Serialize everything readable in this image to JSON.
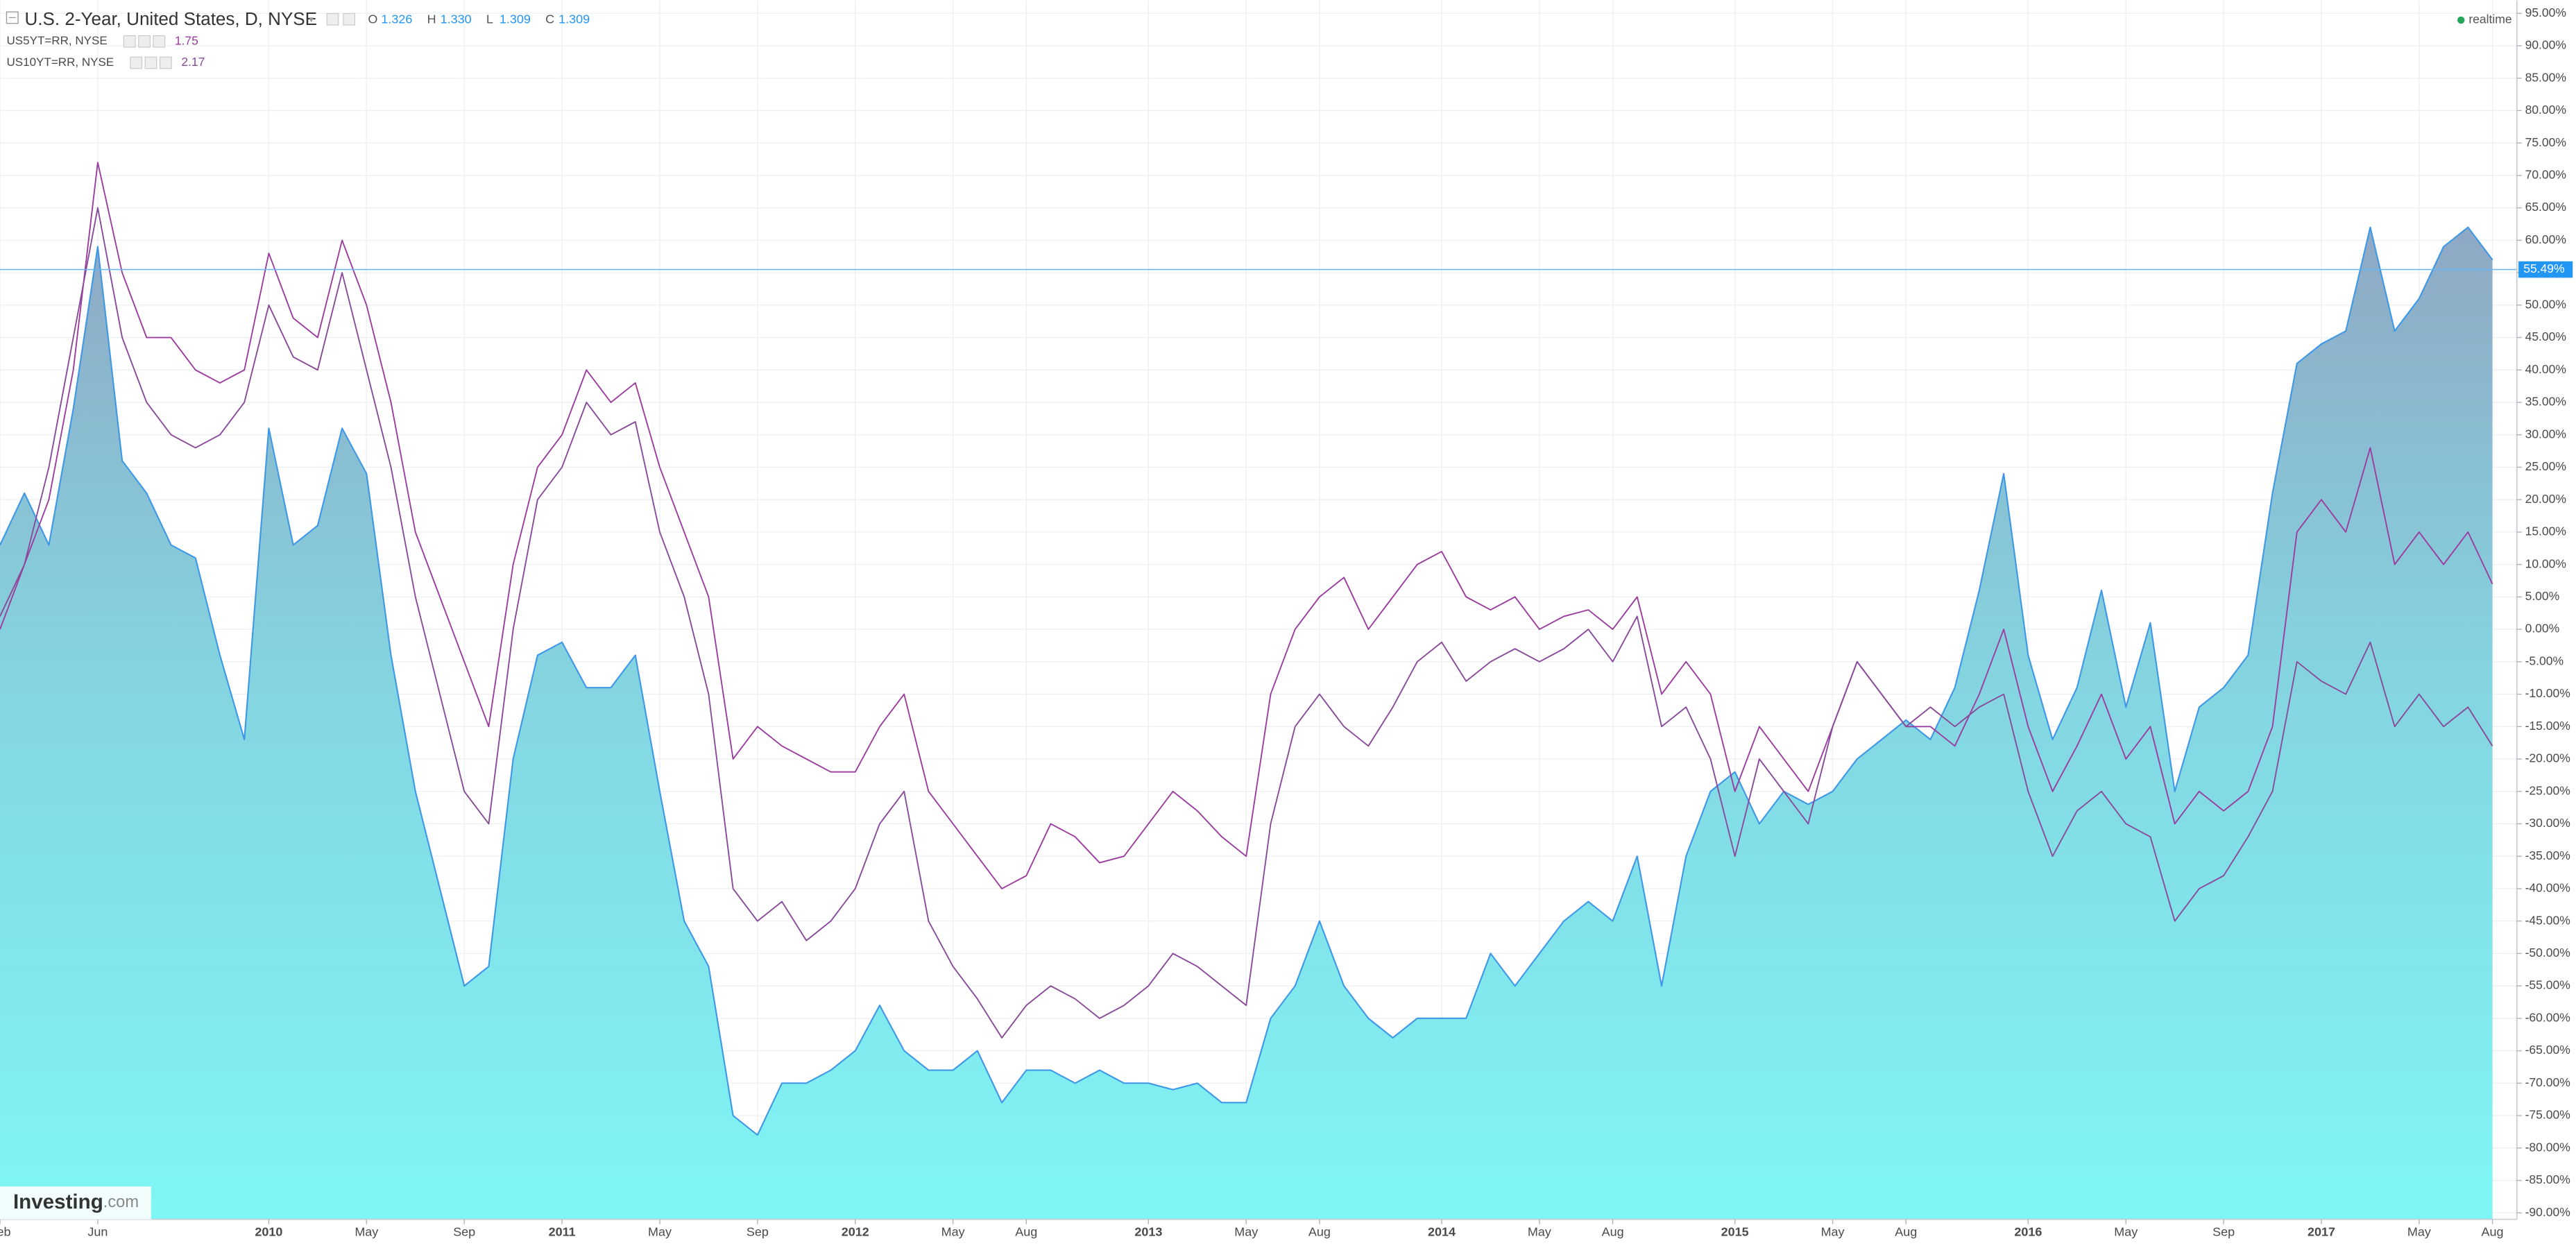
{
  "header": {
    "title": "U.S. 2-Year, United States, D, NYSE",
    "ohlc": [
      {
        "label": "O",
        "value": "1.326"
      },
      {
        "label": "H",
        "value": "1.330"
      },
      {
        "label": "L",
        "value": "1.309"
      },
      {
        "label": "C",
        "value": "1.309"
      }
    ],
    "compare": [
      {
        "name": "US5YT=RR, NYSE",
        "last": "1.75"
      },
      {
        "name": "US10YT=RR, NYSE",
        "last": "2.17"
      }
    ],
    "status": "realtime"
  },
  "watermark": {
    "brand": "Investing",
    "suffix": ".com"
  },
  "chart_data": {
    "type": "line",
    "x": [
      "2009-02",
      "2009-03",
      "2009-04",
      "2009-05",
      "2009-06",
      "2009-07",
      "2009-08",
      "2009-09",
      "2009-10",
      "2009-11",
      "2009-12",
      "2010-01",
      "2010-02",
      "2010-03",
      "2010-04",
      "2010-05",
      "2010-06",
      "2010-07",
      "2010-08",
      "2010-09",
      "2010-10",
      "2010-11",
      "2010-12",
      "2011-01",
      "2011-02",
      "2011-03",
      "2011-04",
      "2011-05",
      "2011-06",
      "2011-07",
      "2011-08",
      "2011-09",
      "2011-10",
      "2011-11",
      "2011-12",
      "2012-01",
      "2012-02",
      "2012-03",
      "2012-04",
      "2012-05",
      "2012-06",
      "2012-07",
      "2012-08",
      "2012-09",
      "2012-10",
      "2012-11",
      "2012-12",
      "2013-01",
      "2013-02",
      "2013-03",
      "2013-04",
      "2013-05",
      "2013-06",
      "2013-07",
      "2013-08",
      "2013-09",
      "2013-10",
      "2013-11",
      "2013-12",
      "2014-01",
      "2014-02",
      "2014-03",
      "2014-04",
      "2014-05",
      "2014-06",
      "2014-07",
      "2014-08",
      "2014-09",
      "2014-10",
      "2014-11",
      "2014-12",
      "2015-01",
      "2015-02",
      "2015-03",
      "2015-04",
      "2015-05",
      "2015-06",
      "2015-07",
      "2015-08",
      "2015-09",
      "2015-10",
      "2015-11",
      "2015-12",
      "2016-01",
      "2016-02",
      "2016-03",
      "2016-04",
      "2016-05",
      "2016-06",
      "2016-07",
      "2016-08",
      "2016-09",
      "2016-10",
      "2016-11",
      "2016-12",
      "2017-01",
      "2017-02",
      "2017-03",
      "2017-04",
      "2017-05",
      "2017-06",
      "2017-07",
      "2017-08"
    ],
    "series": [
      {
        "name": "U.S. 2-Year, United States, D, NYSE",
        "color": "#3f98e6",
        "fill": true,
        "values": [
          13,
          21,
          13,
          34,
          59,
          26,
          21,
          13,
          11,
          -4,
          -17,
          31,
          13,
          16,
          31,
          24,
          -4,
          -25,
          -40,
          -55,
          -52,
          -20,
          -4,
          -2,
          -9,
          -9,
          -4,
          -25,
          -45,
          -52,
          -75,
          -78,
          -70,
          -70,
          -68,
          -65,
          -58,
          -65,
          -68,
          -68,
          -65,
          -73,
          -68,
          -68,
          -70,
          -68,
          -70,
          -70,
          -71,
          -70,
          -73,
          -73,
          -60,
          -55,
          -45,
          -55,
          -60,
          -63,
          -60,
          -60,
          -60,
          -50,
          -55,
          -50,
          -45,
          -42,
          -45,
          -35,
          -55,
          -35,
          -25,
          -22,
          -30,
          -25,
          -27,
          -25,
          -20,
          -17,
          -14,
          -17,
          -9,
          6,
          24,
          -4,
          -17,
          -9,
          6,
          -12,
          1,
          -25,
          -12,
          -9,
          -4,
          21,
          41,
          44,
          46,
          62,
          46,
          51,
          59,
          62,
          57
        ]
      },
      {
        "name": "US5YT=RR, NYSE",
        "color": "#9b3d9e",
        "values": [
          0,
          10,
          20,
          40,
          72,
          55,
          45,
          45,
          40,
          38,
          40,
          58,
          48,
          45,
          60,
          50,
          35,
          15,
          5,
          -5,
          -15,
          10,
          25,
          30,
          40,
          35,
          38,
          25,
          15,
          5,
          -20,
          -15,
          -18,
          -20,
          -22,
          -22,
          -15,
          -10,
          -25,
          -30,
          -35,
          -40,
          -38,
          -30,
          -32,
          -36,
          -35,
          -30,
          -25,
          -28,
          -32,
          -35,
          -10,
          0,
          5,
          8,
          0,
          5,
          10,
          12,
          5,
          3,
          5,
          0,
          2,
          3,
          0,
          5,
          -10,
          -5,
          -10,
          -25,
          -15,
          -20,
          -25,
          -15,
          -5,
          -10,
          -15,
          -15,
          -18,
          -10,
          0,
          -15,
          -25,
          -18,
          -10,
          -20,
          -15,
          -30,
          -25,
          -28,
          -25,
          -15,
          15,
          20,
          15,
          28,
          10,
          15,
          10,
          15,
          7
        ]
      },
      {
        "name": "US10YT=RR, NYSE",
        "color": "#8a4a9a",
        "values": [
          2,
          10,
          25,
          45,
          65,
          45,
          35,
          30,
          28,
          30,
          35,
          50,
          42,
          40,
          55,
          40,
          25,
          5,
          -10,
          -25,
          -30,
          0,
          20,
          25,
          35,
          30,
          32,
          15,
          5,
          -10,
          -40,
          -45,
          -42,
          -48,
          -45,
          -40,
          -30,
          -25,
          -45,
          -52,
          -57,
          -63,
          -58,
          -55,
          -57,
          -60,
          -58,
          -55,
          -50,
          -52,
          -55,
          -58,
          -30,
          -15,
          -10,
          -15,
          -18,
          -12,
          -5,
          -2,
          -8,
          -5,
          -3,
          -5,
          -3,
          0,
          -5,
          2,
          -15,
          -12,
          -20,
          -35,
          -20,
          -25,
          -30,
          -15,
          -5,
          -10,
          -15,
          -12,
          -15,
          -12,
          -10,
          -25,
          -35,
          -28,
          -25,
          -30,
          -32,
          -45,
          -40,
          -38,
          -32,
          -25,
          -5,
          -8,
          -10,
          -2,
          -15,
          -10,
          -15,
          -12,
          -18
        ]
      }
    ],
    "last_value": {
      "value": 55.49,
      "label": "55.49%"
    },
    "xlim": [
      "2009-02",
      "2017-09"
    ],
    "xticks": [
      {
        "value": "2009-02",
        "label": "Feb"
      },
      {
        "value": "2009-06",
        "label": "Jun"
      },
      {
        "value": "2010-01",
        "label": "2010"
      },
      {
        "value": "2010-05",
        "label": "May"
      },
      {
        "value": "2010-09",
        "label": "Sep"
      },
      {
        "value": "2011-01",
        "label": "2011"
      },
      {
        "value": "2011-05",
        "label": "May"
      },
      {
        "value": "2011-09",
        "label": "Sep"
      },
      {
        "value": "2012-01",
        "label": "2012"
      },
      {
        "value": "2012-05",
        "label": "May"
      },
      {
        "value": "2012-08",
        "label": "Aug"
      },
      {
        "value": "2013-01",
        "label": "2013"
      },
      {
        "value": "2013-05",
        "label": "May"
      },
      {
        "value": "2013-08",
        "label": "Aug"
      },
      {
        "value": "2014-01",
        "label": "2014"
      },
      {
        "value": "2014-05",
        "label": "May"
      },
      {
        "value": "2014-08",
        "label": "Aug"
      },
      {
        "value": "2015-01",
        "label": "2015"
      },
      {
        "value": "2015-05",
        "label": "May"
      },
      {
        "value": "2015-08",
        "label": "Aug"
      },
      {
        "value": "2016-01",
        "label": "2016"
      },
      {
        "value": "2016-05",
        "label": "May"
      },
      {
        "value": "2016-09",
        "label": "Sep"
      },
      {
        "value": "2017-01",
        "label": "2017"
      },
      {
        "value": "2017-05",
        "label": "May"
      },
      {
        "value": "2017-08",
        "label": "Aug"
      }
    ],
    "ylim": [
      -91,
      97
    ],
    "yticks": [
      {
        "value": 95,
        "label": "95.00%"
      },
      {
        "value": 90,
        "label": "90.00%"
      },
      {
        "value": 85,
        "label": "85.00%"
      },
      {
        "value": 80,
        "label": "80.00%"
      },
      {
        "value": 75,
        "label": "75.00%"
      },
      {
        "value": 70,
        "label": "70.00%"
      },
      {
        "value": 65,
        "label": "65.00%"
      },
      {
        "value": 60,
        "label": "60.00%"
      },
      {
        "value": 55,
        "label": "55.00%"
      },
      {
        "value": 50,
        "label": "50.00%"
      },
      {
        "value": 45,
        "label": "45.00%"
      },
      {
        "value": 40,
        "label": "40.00%"
      },
      {
        "value": 35,
        "label": "35.00%"
      },
      {
        "value": 30,
        "label": "30.00%"
      },
      {
        "value": 25,
        "label": "25.00%"
      },
      {
        "value": 20,
        "label": "20.00%"
      },
      {
        "value": 15,
        "label": "15.00%"
      },
      {
        "value": 10,
        "label": "10.00%"
      },
      {
        "value": 5,
        "label": "5.00%"
      },
      {
        "value": 0,
        "label": "0.00%"
      },
      {
        "value": -5,
        "label": "-5.00%"
      },
      {
        "value": -10,
        "label": "-10.00%"
      },
      {
        "value": -15,
        "label": "-15.00%"
      },
      {
        "value": -20,
        "label": "-20.00%"
      },
      {
        "value": -25,
        "label": "-25.00%"
      },
      {
        "value": -30,
        "label": "-30.00%"
      },
      {
        "value": -35,
        "label": "-35.00%"
      },
      {
        "value": -40,
        "label": "-40.00%"
      },
      {
        "value": -45,
        "label": "-45.00%"
      },
      {
        "value": -50,
        "label": "-50.00%"
      },
      {
        "value": -55,
        "label": "-55.00%"
      },
      {
        "value": -60,
        "label": "-60.00%"
      },
      {
        "value": -65,
        "label": "-65.00%"
      },
      {
        "value": -70,
        "label": "-70.00%"
      },
      {
        "value": -75,
        "label": "-75.00%"
      },
      {
        "value": -80,
        "label": "-80.00%"
      },
      {
        "value": -85,
        "label": "-85.00%"
      },
      {
        "value": -90,
        "label": "-90.00%"
      }
    ],
    "grid": true
  }
}
